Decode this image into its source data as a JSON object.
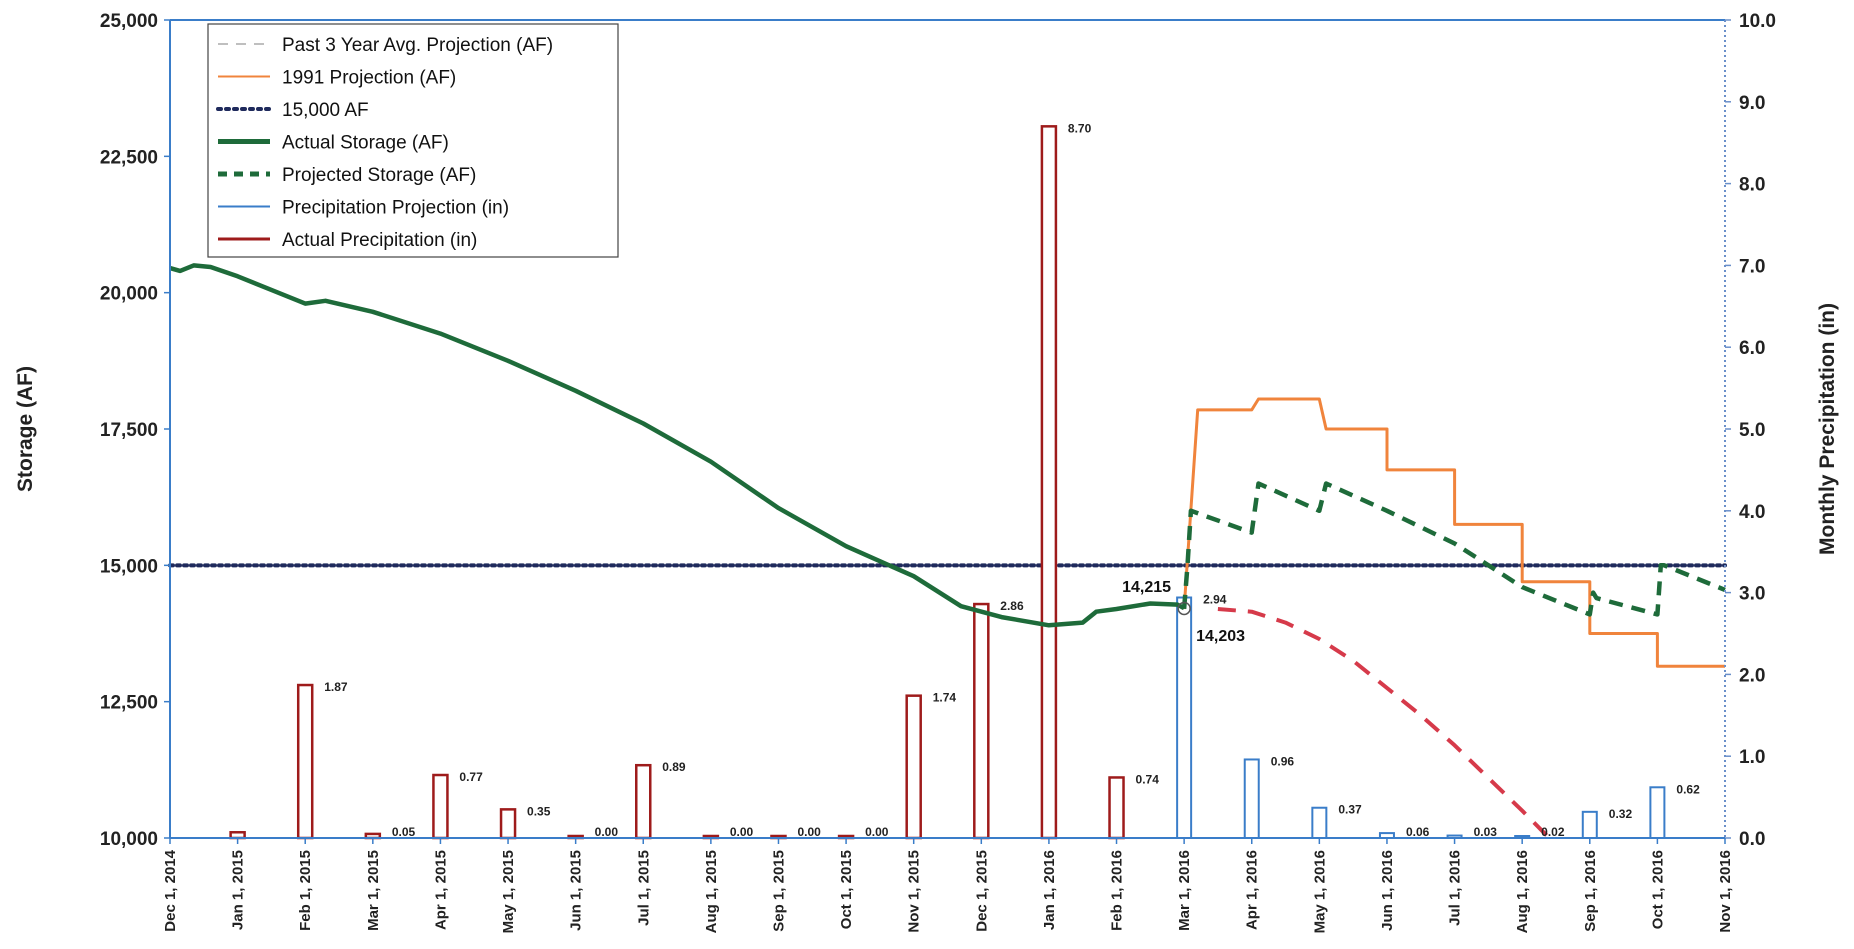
{
  "chart_data": {
    "type": "line",
    "title": "",
    "ylabel": "Storage (AF)",
    "y2label": "Monthly Precipitation (in)",
    "ylim": [
      10000,
      25000
    ],
    "y2lim": [
      0,
      10
    ],
    "yticks": [
      "10,000",
      "12,500",
      "15,000",
      "17,500",
      "20,000",
      "22,500",
      "25,000"
    ],
    "y2ticks": [
      "0.0",
      "1.0",
      "2.0",
      "3.0",
      "4.0",
      "5.0",
      "6.0",
      "7.0",
      "8.0",
      "9.0",
      "10.0"
    ],
    "x": [
      "Dec 1, 2014",
      "Jan 1, 2015",
      "Feb 1, 2015",
      "Mar 1, 2015",
      "Apr 1, 2015",
      "May 1, 2015",
      "Jun 1, 2015",
      "Jul 1, 2015",
      "Aug 1, 2015",
      "Sep 1, 2015",
      "Oct 1, 2015",
      "Nov 1, 2015",
      "Dec 1, 2015",
      "Jan 1, 2016",
      "Feb 1, 2016",
      "Mar 1, 2016",
      "Apr 1, 2016",
      "May 1, 2016",
      "Jun 1, 2016",
      "Jul 1, 2016",
      "Aug 1, 2016",
      "Sep 1, 2016",
      "Oct 1, 2016",
      "Nov 1, 2016"
    ],
    "grid": false,
    "legend_position": "top-left",
    "legend": [
      {
        "label": "Past 3 Year Avg. Projection (AF)",
        "color": "#bfbfbf",
        "style": "dashed-light"
      },
      {
        "label": "1991 Projection (AF)",
        "color": "#f0843c",
        "style": "solid"
      },
      {
        "label": "15,000 AF",
        "color": "#1f2a5c",
        "style": "dotted"
      },
      {
        "label": "Actual Storage (AF)",
        "color": "#1e6b3a",
        "style": "solid-thick"
      },
      {
        "label": "Projected Storage (AF)",
        "color": "#1e6b3a",
        "style": "dashed-thick"
      },
      {
        "label": "Precipitation Projection (in)",
        "color": "#3a7dc9",
        "style": "solid"
      },
      {
        "label": "Actual Precipitation (in)",
        "color": "#9e1b1b",
        "style": "solid"
      }
    ],
    "series": [
      {
        "name": "Actual Storage (AF)",
        "axis": "left",
        "color": "#1e6b3a",
        "points": [
          [
            0,
            20450
          ],
          [
            0.15,
            20400
          ],
          [
            0.35,
            20500
          ],
          [
            0.6,
            20470
          ],
          [
            1,
            20300
          ],
          [
            1.5,
            20050
          ],
          [
            2,
            19800
          ],
          [
            2.3,
            19850
          ],
          [
            3,
            19650
          ],
          [
            4,
            19250
          ],
          [
            5,
            18750
          ],
          [
            6,
            18200
          ],
          [
            7,
            17600
          ],
          [
            8,
            16900
          ],
          [
            9,
            16050
          ],
          [
            10,
            15350
          ],
          [
            11,
            14800
          ],
          [
            11.7,
            14250
          ],
          [
            12.3,
            14050
          ],
          [
            13,
            13900
          ],
          [
            13.5,
            13950
          ],
          [
            13.7,
            14150
          ],
          [
            14,
            14200
          ],
          [
            14.5,
            14300
          ],
          [
            14.9,
            14280
          ],
          [
            15,
            14215
          ]
        ]
      },
      {
        "name": "Projected Storage (AF)",
        "axis": "left",
        "color": "#1e6b3a",
        "points": [
          [
            15,
            14203
          ],
          [
            15.05,
            15000
          ],
          [
            15.1,
            16000
          ],
          [
            16,
            15600
          ],
          [
            16.1,
            16500
          ],
          [
            17,
            16000
          ],
          [
            17.1,
            16500
          ],
          [
            18,
            16000
          ],
          [
            19,
            15400
          ],
          [
            20,
            14600
          ],
          [
            21,
            14100
          ],
          [
            21.05,
            14500
          ],
          [
            21.1,
            14400
          ],
          [
            22,
            14100
          ],
          [
            22.05,
            15000
          ],
          [
            22.1,
            15000
          ],
          [
            23,
            14550
          ]
        ]
      },
      {
        "name": "1991 Projection (AF)",
        "axis": "left",
        "color": "#f0843c",
        "points": [
          [
            15,
            14200
          ],
          [
            15.2,
            17850
          ],
          [
            16,
            17850
          ],
          [
            16.1,
            18050
          ],
          [
            17,
            18050
          ],
          [
            17.1,
            17500
          ],
          [
            18,
            17500
          ],
          [
            18,
            16750
          ],
          [
            19,
            16750
          ],
          [
            19,
            15750
          ],
          [
            20,
            15750
          ],
          [
            20,
            14700
          ],
          [
            21,
            14700
          ],
          [
            21,
            13750
          ],
          [
            22,
            13750
          ],
          [
            22,
            13150
          ],
          [
            23,
            13150
          ]
        ]
      },
      {
        "name": "Past 3 Year Avg. Projection (AF)",
        "axis": "left",
        "color": "#d63a4a",
        "points": [
          [
            15.5,
            14200
          ],
          [
            16,
            14150
          ],
          [
            16.5,
            13950
          ],
          [
            17,
            13650
          ],
          [
            17.5,
            13250
          ],
          [
            18,
            12750
          ],
          [
            18.5,
            12250
          ],
          [
            19,
            11700
          ],
          [
            19.5,
            11100
          ],
          [
            20,
            10500
          ],
          [
            20.4,
            10000
          ]
        ]
      }
    ],
    "reference_lines": [
      {
        "name": "15,000 AF",
        "axis": "left",
        "value": 15000,
        "color": "#1f2a5c"
      }
    ],
    "bars": [
      {
        "x": 1,
        "value": 0.07,
        "label": "",
        "kind": "actual"
      },
      {
        "x": 2,
        "value": 1.87,
        "label": "1.87",
        "kind": "actual"
      },
      {
        "x": 3,
        "value": 0.05,
        "label": "0.05",
        "kind": "actual"
      },
      {
        "x": 4,
        "value": 0.77,
        "label": "0.77",
        "kind": "actual"
      },
      {
        "x": 5,
        "value": 0.35,
        "label": "0.35",
        "kind": "actual"
      },
      {
        "x": 6,
        "value": 0.0,
        "label": "0.00",
        "kind": "actual"
      },
      {
        "x": 7,
        "value": 0.89,
        "label": "0.89",
        "kind": "actual"
      },
      {
        "x": 8,
        "value": 0.0,
        "label": "0.00",
        "kind": "actual"
      },
      {
        "x": 9,
        "value": 0.0,
        "label": "0.00",
        "kind": "actual"
      },
      {
        "x": 10,
        "value": 0.0,
        "label": "0.00",
        "kind": "actual"
      },
      {
        "x": 11,
        "value": 1.74,
        "label": "1.74",
        "kind": "actual"
      },
      {
        "x": 12,
        "value": 2.86,
        "label": "2.86",
        "kind": "actual"
      },
      {
        "x": 13,
        "value": 8.7,
        "label": "8.70",
        "kind": "actual"
      },
      {
        "x": 14,
        "value": 0.74,
        "label": "0.74",
        "kind": "actual"
      },
      {
        "x": 15,
        "value": 2.94,
        "label": "2.94",
        "kind": "projected"
      },
      {
        "x": 16,
        "value": 0.96,
        "label": "0.96",
        "kind": "projected"
      },
      {
        "x": 17,
        "value": 0.37,
        "label": "0.37",
        "kind": "projected"
      },
      {
        "x": 18,
        "value": 0.06,
        "label": "0.06",
        "kind": "projected"
      },
      {
        "x": 19,
        "value": 0.03,
        "label": "0.03",
        "kind": "projected"
      },
      {
        "x": 20,
        "value": 0.02,
        "label": "0.02",
        "kind": "projected"
      },
      {
        "x": 21,
        "value": 0.32,
        "label": "0.32",
        "kind": "projected"
      },
      {
        "x": 22,
        "value": 0.62,
        "label": "0.62",
        "kind": "projected"
      }
    ],
    "annotations": [
      {
        "text": "14,215",
        "x": 15,
        "y": 14215
      },
      {
        "text": "14,203",
        "x": 15,
        "y": 14203
      }
    ]
  }
}
